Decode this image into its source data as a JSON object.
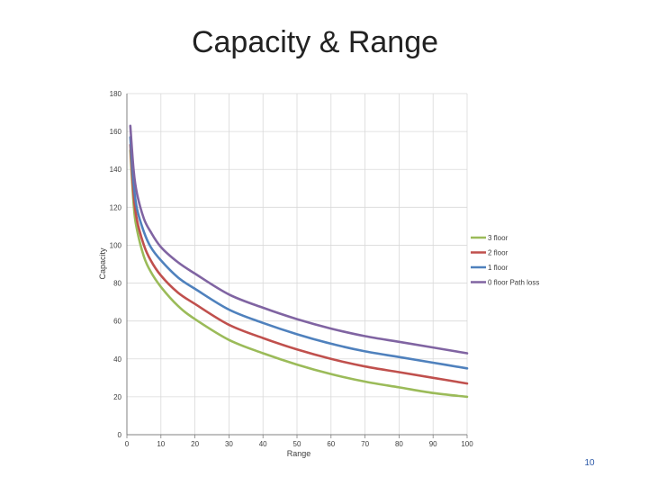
{
  "slide": {
    "title": "Capacity & Range",
    "page_number": "10"
  },
  "chart_data": {
    "type": "line",
    "title": "",
    "xlabel": "Range",
    "ylabel": "Capacity",
    "xlim": [
      0,
      100
    ],
    "ylim": [
      0,
      180
    ],
    "x_ticks": [
      0,
      10,
      20,
      30,
      40,
      50,
      60,
      70,
      80,
      90,
      100
    ],
    "y_ticks": [
      0,
      20,
      40,
      60,
      80,
      100,
      120,
      140,
      160,
      180
    ],
    "grid": "vertical and horizontal",
    "legend_position": "right",
    "x": [
      1,
      2,
      3,
      5,
      7,
      10,
      15,
      20,
      30,
      40,
      50,
      60,
      70,
      80,
      90,
      100
    ],
    "series": [
      {
        "name": "3 floor",
        "color": "#9bbb59",
        "values": [
          150,
          121,
          108,
          94,
          86,
          78,
          68,
          61,
          50,
          43,
          37,
          32,
          28,
          25,
          22,
          20
        ]
      },
      {
        "name": "2 floor",
        "color": "#c0504d",
        "values": [
          153,
          126,
          113,
          100,
          92,
          84,
          75,
          69,
          58,
          51,
          45,
          40,
          36,
          33,
          30,
          27
        ]
      },
      {
        "name": "1 floor",
        "color": "#4f81bd",
        "values": [
          157,
          132,
          119,
          107,
          99,
          92,
          83,
          77,
          66,
          59,
          53,
          48,
          44,
          41,
          38,
          35
        ]
      },
      {
        "name": "0 floor Path loss",
        "color": "#8064a2",
        "values": [
          163,
          139,
          127,
          114,
          107,
          99,
          91,
          85,
          74,
          67,
          61,
          56,
          52,
          49,
          46,
          43
        ]
      }
    ]
  }
}
